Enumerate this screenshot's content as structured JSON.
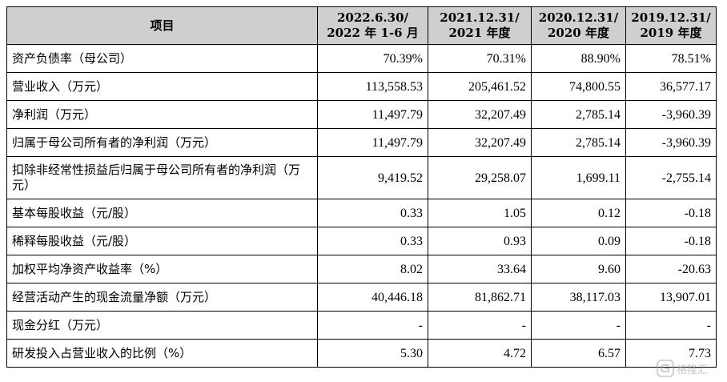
{
  "table": {
    "headers": [
      {
        "line1": "项目",
        "line2": ""
      },
      {
        "line1": "2022.6.30/",
        "line2": "2022 年 1-6 月"
      },
      {
        "line1": "2021.12.31/",
        "line2": "2021 年度"
      },
      {
        "line1": "2020.12.31/",
        "line2": "2020 年度"
      },
      {
        "line1": "2019.12.31/",
        "line2": "2019 年度"
      }
    ],
    "rows": [
      {
        "label": "资产负债率（母公司）",
        "values": [
          "70.39%",
          "70.31%",
          "88.90%",
          "78.51%"
        ]
      },
      {
        "label": "营业收入（万元）",
        "values": [
          "113,558.53",
          "205,461.52",
          "74,800.55",
          "36,577.17"
        ]
      },
      {
        "label": "净利润（万元）",
        "values": [
          "11,497.79",
          "32,207.49",
          "2,785.14",
          "-3,960.39"
        ]
      },
      {
        "label": "归属于母公司所有者的净利润（万元）",
        "values": [
          "11,497.79",
          "32,207.49",
          "2,785.14",
          "-3,960.39"
        ]
      },
      {
        "label": "扣除非经常性损益后归属于母公司所有者的净利润（万元）",
        "values": [
          "9,419.52",
          "29,258.07",
          "1,699.11",
          "-2,755.14"
        ]
      },
      {
        "label": "基本每股收益（元/股）",
        "values": [
          "0.33",
          "1.05",
          "0.12",
          "-0.18"
        ]
      },
      {
        "label": "稀释每股收益（元/股）",
        "values": [
          "0.33",
          "0.93",
          "0.09",
          "-0.18"
        ]
      },
      {
        "label": "加权平均净资产收益率（%）",
        "values": [
          "8.02",
          "33.64",
          "9.60",
          "-20.63"
        ]
      },
      {
        "label": "经营活动产生的现金流量净额（万元）",
        "values": [
          "40,446.18",
          "81,862.71",
          "38,117.03",
          "13,907.01"
        ]
      },
      {
        "label": "现金分红（万元）",
        "values": [
          "-",
          "-",
          "-",
          "-"
        ]
      },
      {
        "label": "研发投入占营业收入的比例（%）",
        "values": [
          "5.30",
          "4.72",
          "6.57",
          "7.73"
        ]
      }
    ]
  },
  "watermark": {
    "text": "格隆汇",
    "icon": "gelonghui-logo-icon",
    "color": "#9a9a9a"
  }
}
